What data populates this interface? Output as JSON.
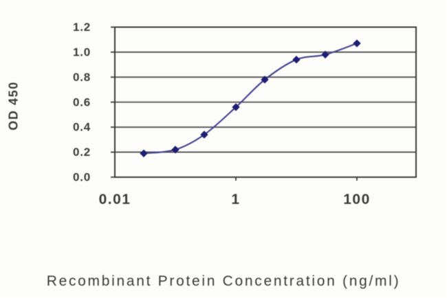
{
  "chart_data": {
    "type": "line",
    "title": "",
    "xlabel": "Recombinant Protein Concentration (ng/ml)",
    "ylabel": "OD 450",
    "x_scale": "log",
    "x": [
      0.03,
      0.1,
      0.3,
      1,
      3,
      10,
      30,
      100
    ],
    "y": [
      0.19,
      0.22,
      0.34,
      0.56,
      0.78,
      0.94,
      0.98,
      1.07
    ],
    "x_ticks": [
      {
        "value": 0.01,
        "label": "0.01"
      },
      {
        "value": 1,
        "label": "1"
      },
      {
        "value": 100,
        "label": "100"
      }
    ],
    "y_ticks": [
      {
        "value": 0.0,
        "label": "0.0"
      },
      {
        "value": 0.2,
        "label": "0.2"
      },
      {
        "value": 0.4,
        "label": "0.4"
      },
      {
        "value": 0.6,
        "label": "0.6"
      },
      {
        "value": 0.8,
        "label": "0.8"
      },
      {
        "value": 1.0,
        "label": "1.0"
      },
      {
        "value": 1.2,
        "label": "1.2"
      }
    ],
    "xlim": [
      0.01,
      1000
    ],
    "ylim": [
      0,
      1.2
    ],
    "grid": "horizontal",
    "legend": "none",
    "marker": "diamond",
    "line_style": "smooth",
    "colors": {
      "line": "#44448e",
      "marker": "#1e1e72",
      "grid": "#4f4f4f",
      "frame": "#3a3a3a",
      "text": "#3a3a3a",
      "background": "#fdfdfc"
    }
  }
}
